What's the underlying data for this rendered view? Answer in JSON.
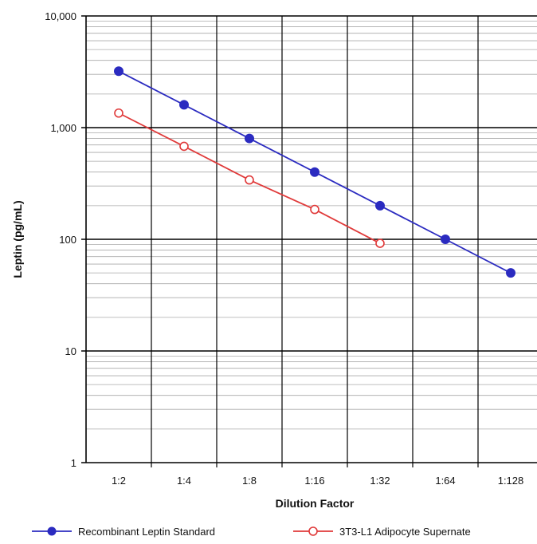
{
  "chart_data": {
    "type": "line",
    "xlabel": "Dilution Factor",
    "ylabel": "Leptin (pg/mL)",
    "y_scale": "log",
    "ylim": [
      1,
      10000
    ],
    "y_ticks": [
      1,
      10,
      100,
      1000,
      10000
    ],
    "y_tick_labels": [
      "1",
      "10",
      "100",
      "1,000",
      "10,000"
    ],
    "categories": [
      "1:2",
      "1:4",
      "1:8",
      "1:16",
      "1:32",
      "1:64",
      "1:128"
    ],
    "grid": true,
    "legend_position": "bottom",
    "series": [
      {
        "name": "Recombinant Leptin Standard",
        "color": "#2b2bc0",
        "marker": "filled-circle",
        "values": [
          3200,
          1600,
          800,
          400,
          200,
          100,
          50
        ]
      },
      {
        "name": "3T3-L1 Adipocyte Supernate",
        "color": "#e03a3a",
        "marker": "open-circle",
        "values": [
          1350,
          680,
          340,
          185,
          92,
          null,
          null
        ]
      }
    ]
  }
}
